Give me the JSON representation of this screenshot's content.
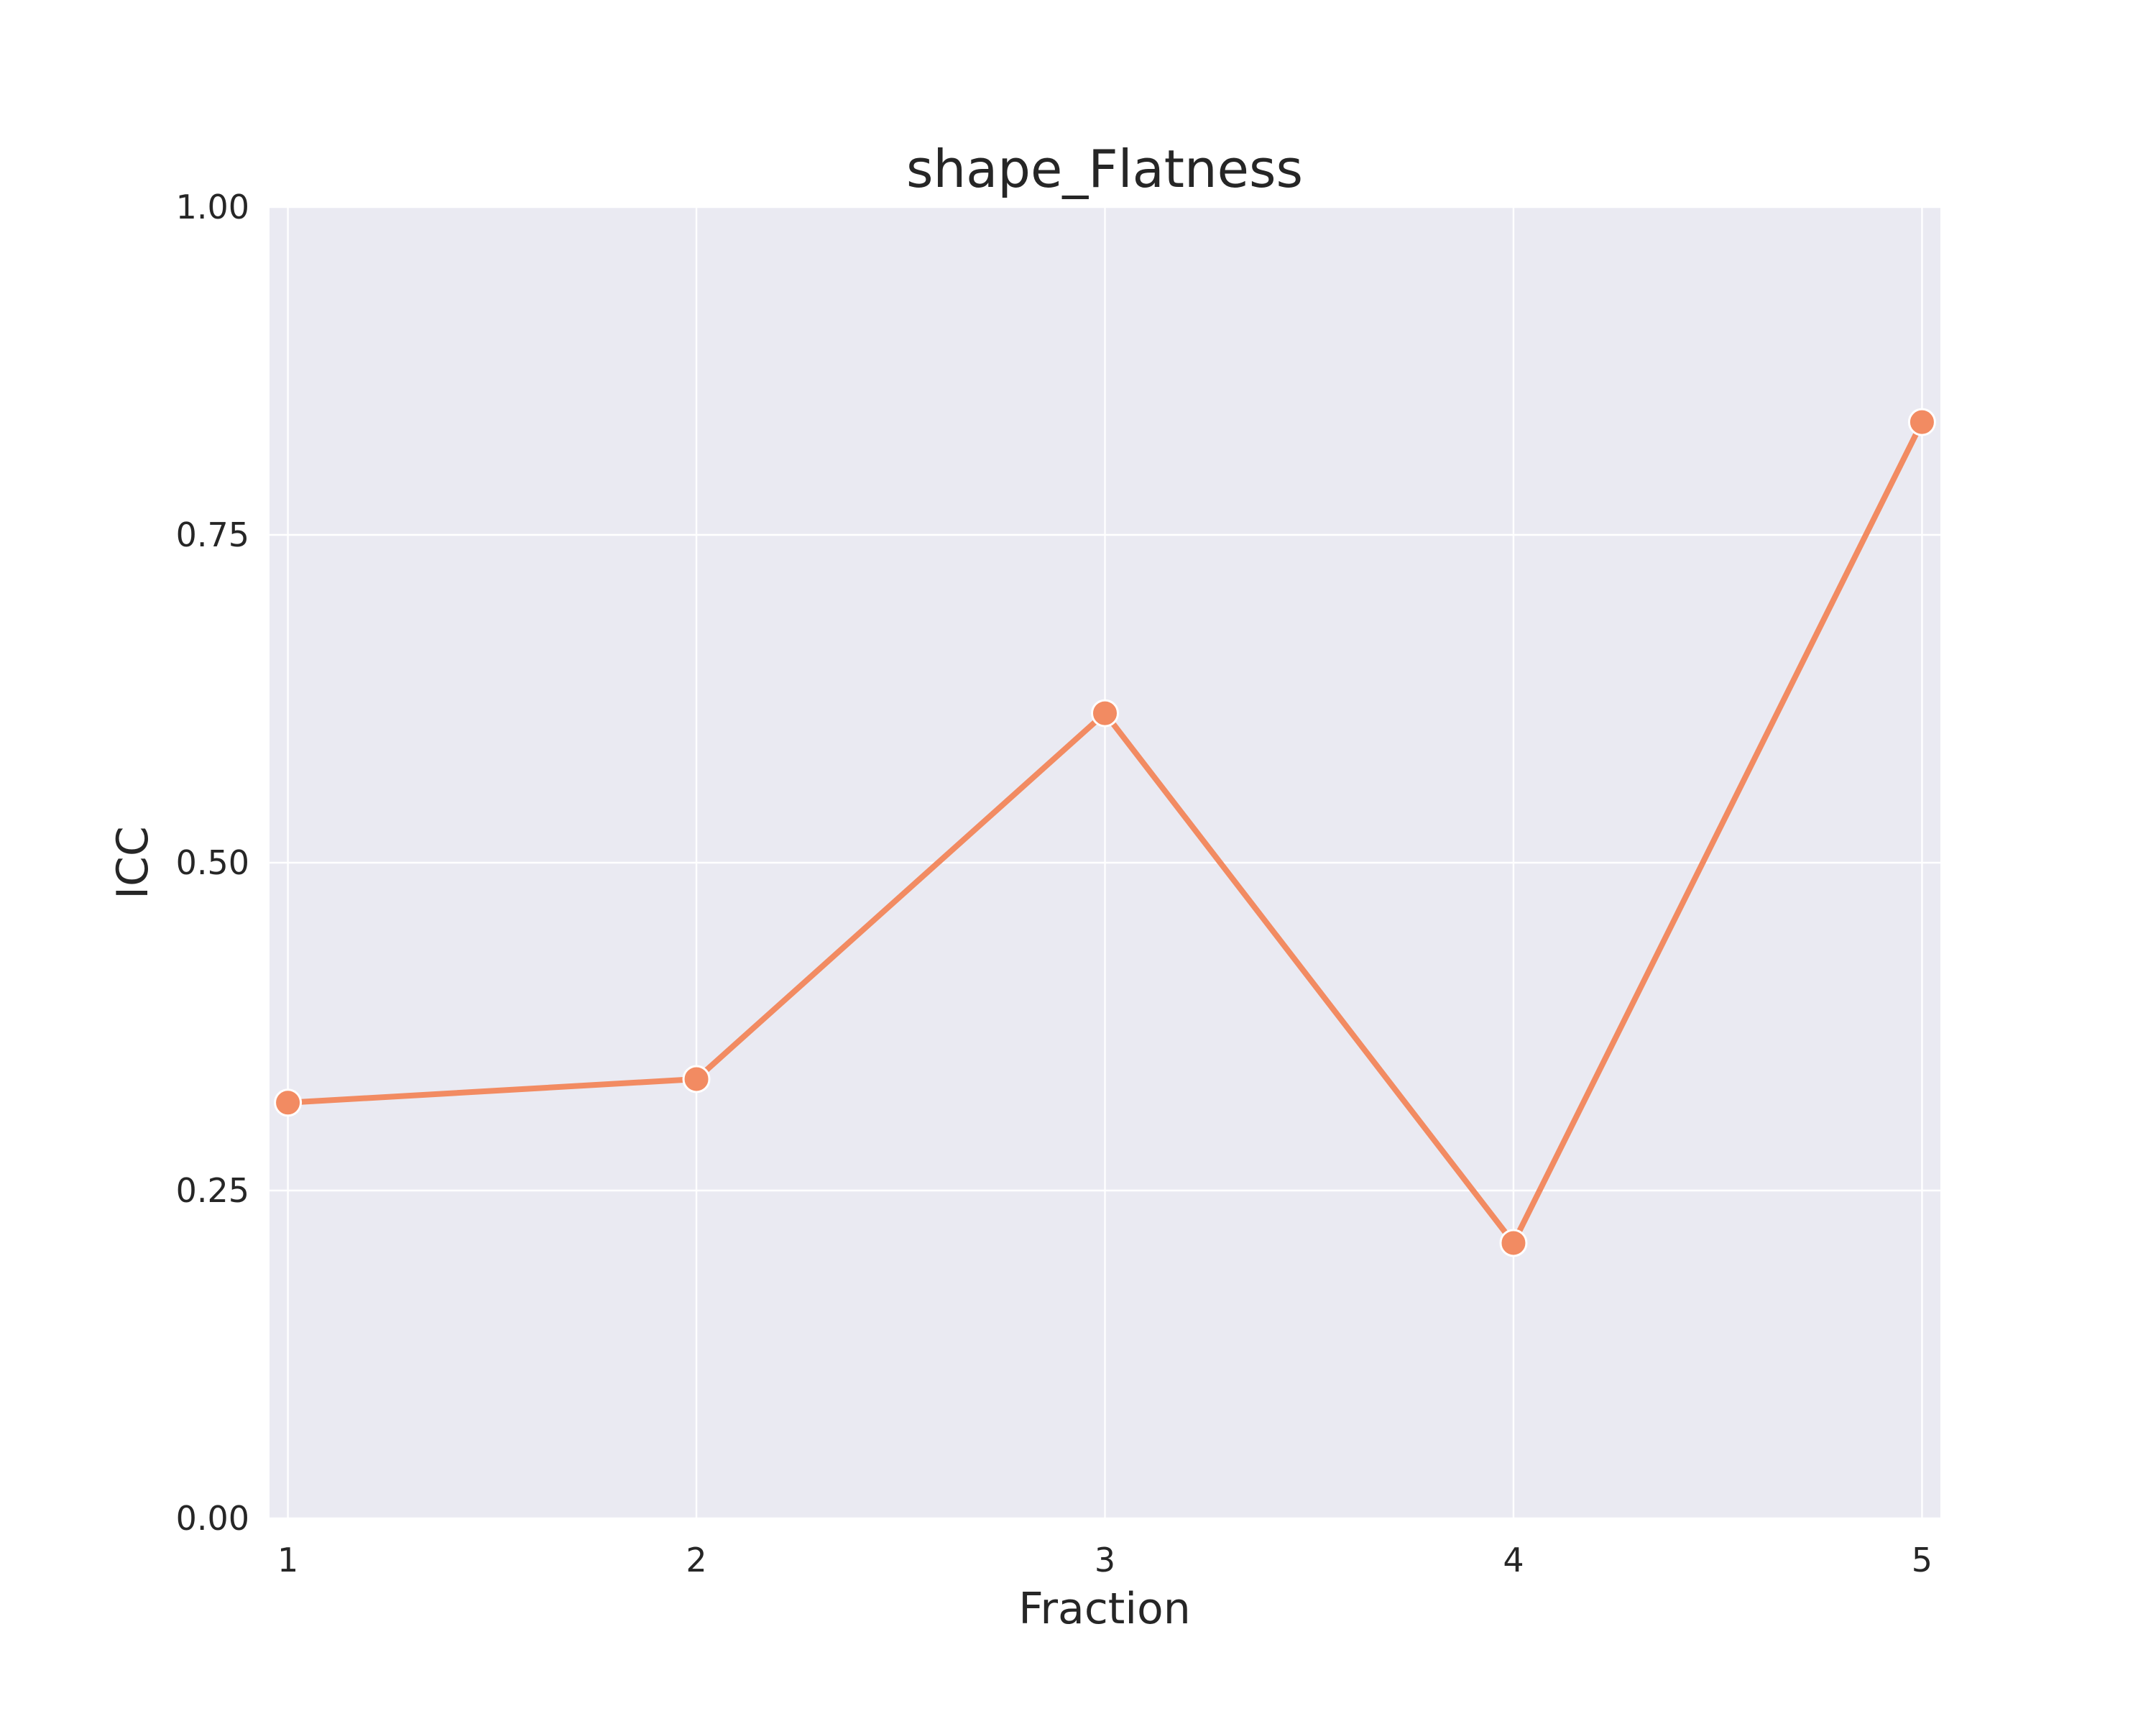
{
  "chart_data": {
    "type": "line",
    "title": "shape_Flatness",
    "xlabel": "Fraction",
    "ylabel": "ICC",
    "x": [
      1,
      2,
      3,
      4,
      5
    ],
    "series": [
      {
        "values": [
          0.317,
          0.335,
          0.614,
          0.21,
          0.836
        ],
        "color": "#f28b62"
      }
    ],
    "xticks": [
      "1",
      "2",
      "3",
      "4",
      "5"
    ],
    "yticks": [
      "0.00",
      "0.25",
      "0.50",
      "0.75",
      "1.00"
    ],
    "ylim": [
      0,
      1
    ],
    "xlim": [
      0.955,
      5.045
    ],
    "grid": true,
    "background_color": "#eaeaf2",
    "grid_color": "#ffffff"
  }
}
